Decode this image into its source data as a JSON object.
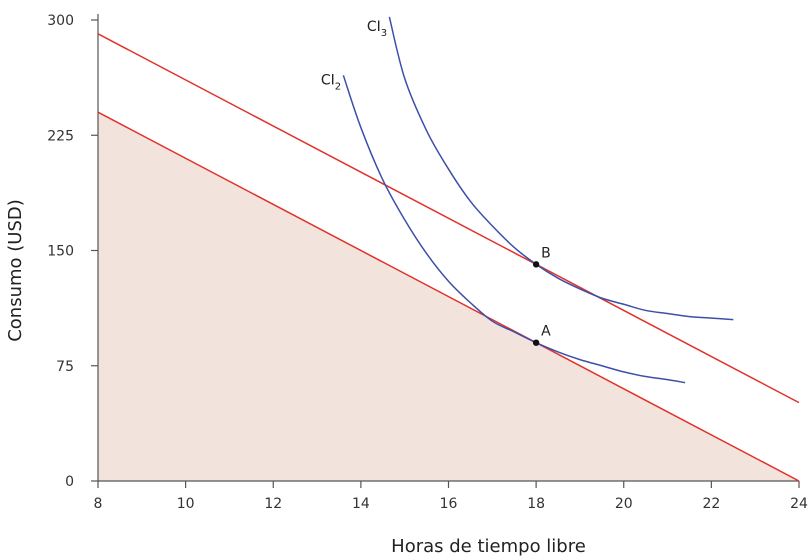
{
  "chart_data": {
    "type": "line",
    "xlabel": "Horas de tiempo libre",
    "ylabel": "Consumo (USD)",
    "xlim": [
      8,
      24
    ],
    "ylim": [
      0,
      300
    ],
    "x_ticks": [
      "8",
      "10",
      "12",
      "14",
      "16",
      "18",
      "20",
      "22",
      "24"
    ],
    "y_ticks": [
      "0",
      "75",
      "150",
      "225",
      "300"
    ],
    "budget_lines": [
      {
        "x": [
          8,
          24
        ],
        "y": [
          240,
          0
        ]
      },
      {
        "x": [
          8,
          24
        ],
        "y": [
          291,
          51
        ]
      }
    ],
    "feasible_set": {
      "x": [
        8,
        24
      ],
      "y": [
        240,
        0
      ]
    },
    "indifference_curves": [
      {
        "name": "CI",
        "subscript": "2",
        "label_at": [
          13.55,
          258
        ],
        "points": [
          [
            13.6,
            264
          ],
          [
            14.0,
            230
          ],
          [
            14.5,
            196
          ],
          [
            15.0,
            170
          ],
          [
            15.5,
            148
          ],
          [
            16.0,
            130
          ],
          [
            16.5,
            116
          ],
          [
            17.0,
            104
          ],
          [
            17.5,
            97
          ],
          [
            18.0,
            90
          ],
          [
            18.5,
            84
          ],
          [
            19.0,
            79
          ],
          [
            19.5,
            75
          ],
          [
            20.0,
            71
          ],
          [
            20.5,
            68
          ],
          [
            21.0,
            66
          ],
          [
            21.4,
            64
          ]
        ]
      },
      {
        "name": "CI",
        "subscript": "3",
        "label_at": [
          14.6,
          293
        ],
        "points": [
          [
            14.65,
            302
          ],
          [
            15.0,
            262
          ],
          [
            15.5,
            228
          ],
          [
            16.0,
            203
          ],
          [
            16.5,
            182
          ],
          [
            17.0,
            166
          ],
          [
            17.5,
            152
          ],
          [
            18.0,
            141
          ],
          [
            18.5,
            132
          ],
          [
            19.0,
            125
          ],
          [
            19.5,
            119
          ],
          [
            20.0,
            115
          ],
          [
            20.5,
            111
          ],
          [
            21.0,
            109
          ],
          [
            21.5,
            107
          ],
          [
            22.0,
            106
          ],
          [
            22.5,
            105
          ]
        ]
      }
    ],
    "points": [
      {
        "label": "A",
        "x": 18,
        "y": 90
      },
      {
        "label": "B",
        "x": 18,
        "y": 141
      }
    ],
    "colors": {
      "budget": "#e0322a",
      "indifference": "#3d4fa8",
      "feasible_fill": "#f3e3dd",
      "axis": "#555555",
      "point": "#111111"
    }
  }
}
